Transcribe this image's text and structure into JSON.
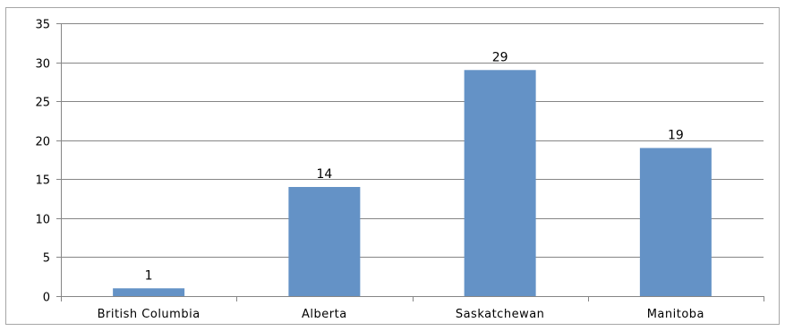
{
  "chart_data": {
    "type": "bar",
    "categories": [
      "British Columbia",
      "Alberta",
      "Saskatchewan",
      "Manitoba"
    ],
    "values": [
      1,
      14,
      29,
      19
    ],
    "data_labels": [
      "1",
      "14",
      "29",
      "19"
    ],
    "title": "",
    "xlabel": "",
    "ylabel": "",
    "ylim": [
      0,
      35
    ],
    "yticks": [
      0,
      5,
      10,
      15,
      20,
      25,
      30,
      35
    ],
    "ytick_labels": [
      "0",
      "5",
      "10",
      "15",
      "20",
      "25",
      "30",
      "35"
    ],
    "grid": true,
    "legend": "none",
    "bar_color": "#6492C6",
    "gridline_color": "#868686"
  }
}
